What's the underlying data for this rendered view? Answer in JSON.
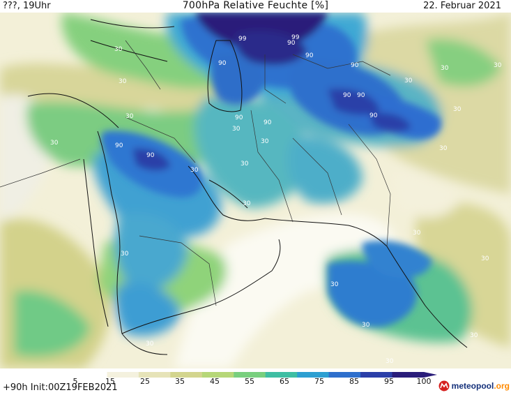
{
  "header": {
    "left": "???, 19Uhr",
    "title": "700hPa Relative Feuchte [%]",
    "date": "22. Februar 2021"
  },
  "footer": {
    "init": "+90h  Init:00Z19FEB2021",
    "brand_name": "meteopool",
    "brand_tld": ".org"
  },
  "colorbar": {
    "ticks": [
      "5",
      "15",
      "25",
      "35",
      "45",
      "55",
      "65",
      "75",
      "85",
      "95",
      "100"
    ],
    "colors": [
      "#ffffff",
      "#f4f1de",
      "#e6e3b8",
      "#d3d58e",
      "#b6d778",
      "#79cf7e",
      "#3fbea3",
      "#2d9fd1",
      "#2e6fcc",
      "#2b3fa8",
      "#2a1d7a"
    ]
  },
  "map": {
    "contour_labels": [
      "99",
      "99",
      "90",
      "90",
      "90",
      "90",
      "90",
      "90",
      "90",
      "90",
      "90",
      "90",
      "90",
      "30",
      "30",
      "30",
      "30",
      "30",
      "30",
      "30",
      "30",
      "30",
      "30",
      "30",
      "30",
      "30",
      "30",
      "30",
      "30",
      "30",
      "30",
      "30",
      "30",
      "30",
      "30"
    ]
  }
}
